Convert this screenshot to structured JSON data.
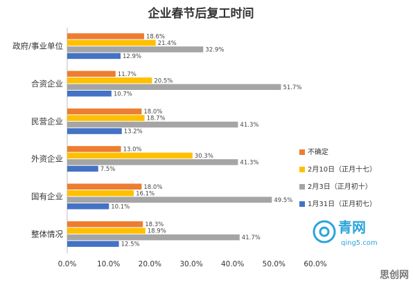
{
  "chart_data": {
    "type": "bar",
    "orientation": "horizontal",
    "title": "企业春节后复工时间",
    "categories": [
      "政府/事业单位",
      "合资企业",
      "民营企业",
      "外资企业",
      "国有企业",
      "整体情况"
    ],
    "series": [
      {
        "name": "不确定",
        "color": "#ed7d31",
        "values": [
          18.6,
          11.7,
          18.0,
          13.0,
          18.0,
          18.3
        ],
        "value_labels": [
          "18.6%",
          "11.7%",
          "18.0%",
          "13.0%",
          "18.0%",
          "18.3%"
        ]
      },
      {
        "name": "2月10日（正月十七）",
        "color": "#ffc000",
        "values": [
          21.4,
          20.5,
          18.7,
          30.3,
          16.1,
          18.9
        ],
        "value_labels": [
          "21.4%",
          "20.5%",
          "18.7%",
          "30.3%",
          "16.1%",
          "18.9%"
        ]
      },
      {
        "name": "2月3日（正月初十）",
        "color": "#a5a5a5",
        "values": [
          32.9,
          51.7,
          41.3,
          41.3,
          49.5,
          41.7
        ],
        "value_labels": [
          "32.9%",
          "51.7%",
          "41.3%",
          "41.3%",
          "49.5%",
          "41.7%"
        ]
      },
      {
        "name": "1月31日（正月初七）",
        "color": "#4472c4",
        "values": [
          12.9,
          10.7,
          13.2,
          7.5,
          10.1,
          12.5
        ],
        "value_labels": [
          "12.9%",
          "10.7%",
          "13.2%",
          "7.5%",
          "10.1%",
          "12.5%"
        ]
      }
    ],
    "xlim": [
      0,
      60
    ],
    "xticks": [
      {
        "value": 0,
        "label": "0.0%"
      },
      {
        "value": 10,
        "label": "10.0%"
      },
      {
        "value": 20,
        "label": "20.0%"
      },
      {
        "value": 30,
        "label": "30.0%"
      },
      {
        "value": 40,
        "label": "40.0%"
      },
      {
        "value": 50,
        "label": "50.0%"
      },
      {
        "value": 60,
        "label": "60.0%"
      }
    ],
    "grid": false,
    "legend": "right",
    "logo_text": "青网",
    "logo_url": "qing5.com",
    "watermark": "思创网"
  }
}
